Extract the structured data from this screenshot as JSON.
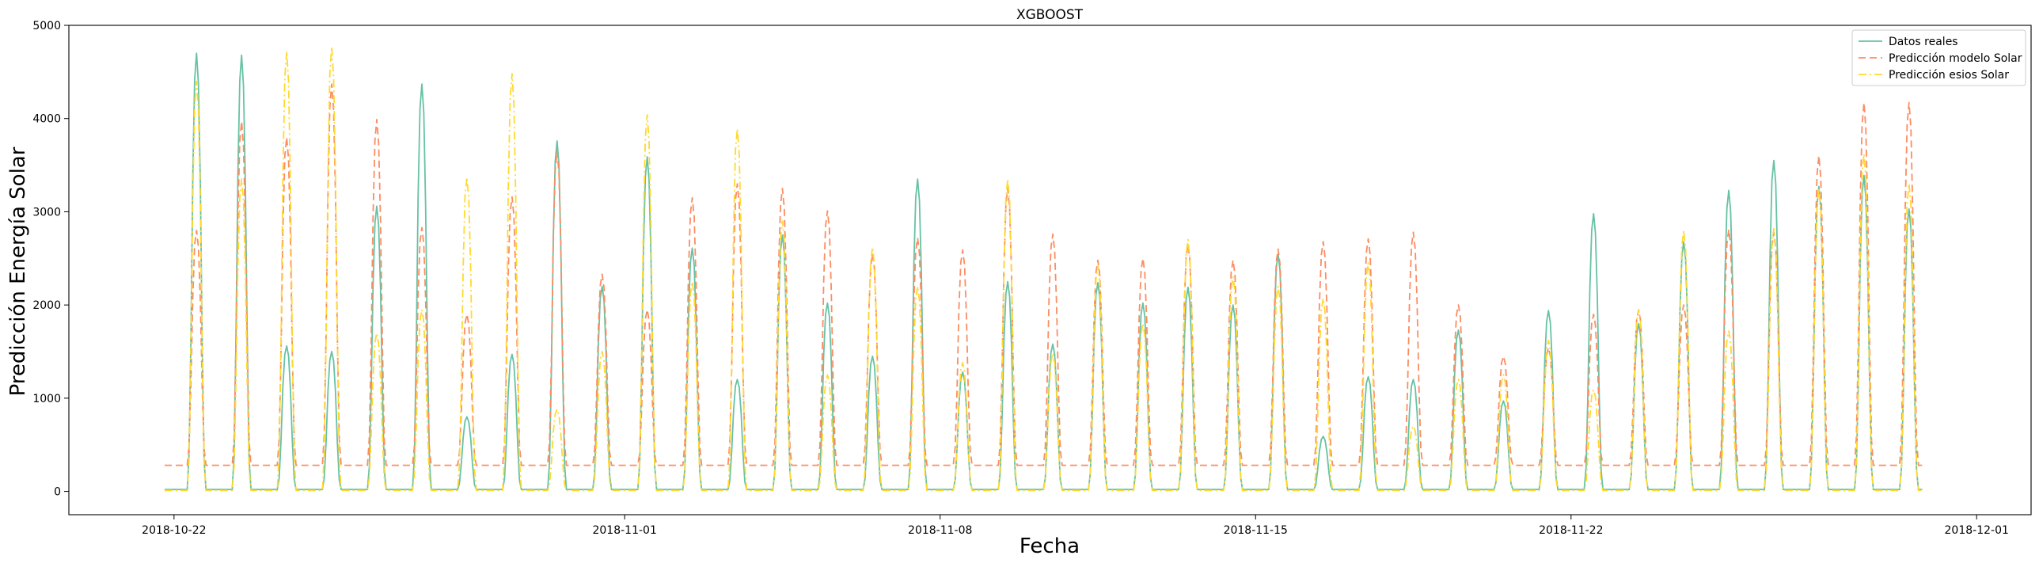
{
  "chart_data": {
    "type": "line",
    "title": "XGBOOST",
    "xlabel": "Fecha",
    "ylabel": "Predicción Energía Solar",
    "x_range": [
      "2018-10-19T16:00",
      "2018-12-02T05:00"
    ],
    "ylim": [
      -250,
      5000
    ],
    "y_ticks": [
      0,
      1000,
      2000,
      3000,
      4000,
      5000
    ],
    "x_ticks": [
      "2018-10-22",
      "2018-11-01",
      "2018-11-08",
      "2018-11-15",
      "2018-11-22",
      "2018-12-01"
    ],
    "grid": false,
    "legend_position": "top-right",
    "series": [
      {
        "name": "Datos reales",
        "color": "#66c2a5",
        "style": "solid",
        "night_level": 20,
        "daily_peaks": [
          [
            "2018-10-22",
            4700
          ],
          [
            "2018-10-23",
            4680
          ],
          [
            "2018-10-24",
            1560
          ],
          [
            "2018-10-25",
            1500
          ],
          [
            "2018-10-26",
            3060
          ],
          [
            "2018-10-27",
            4370
          ],
          [
            "2018-10-28",
            800
          ],
          [
            "2018-10-29",
            1470
          ],
          [
            "2018-10-30",
            3760
          ],
          [
            "2018-10-31",
            2200
          ],
          [
            "2018-11-01",
            3590
          ],
          [
            "2018-11-02",
            2610
          ],
          [
            "2018-11-03",
            1200
          ],
          [
            "2018-11-04",
            2750
          ],
          [
            "2018-11-05",
            2020
          ],
          [
            "2018-11-06",
            1450
          ],
          [
            "2018-11-07",
            3350
          ],
          [
            "2018-11-08",
            1280
          ],
          [
            "2018-11-09",
            2250
          ],
          [
            "2018-11-10",
            1580
          ],
          [
            "2018-11-11",
            2240
          ],
          [
            "2018-11-12",
            2020
          ],
          [
            "2018-11-13",
            2190
          ],
          [
            "2018-11-14",
            2000
          ],
          [
            "2018-11-15",
            2550
          ],
          [
            "2018-11-16",
            590
          ],
          [
            "2018-11-17",
            1230
          ],
          [
            "2018-11-18",
            1200
          ],
          [
            "2018-11-19",
            1730
          ],
          [
            "2018-11-20",
            970
          ],
          [
            "2018-11-21",
            1940
          ],
          [
            "2018-11-22",
            2980
          ],
          [
            "2018-11-23",
            1800
          ],
          [
            "2018-11-24",
            2680
          ],
          [
            "2018-11-25",
            3230
          ],
          [
            "2018-11-26",
            3550
          ],
          [
            "2018-11-27",
            3270
          ],
          [
            "2018-11-28",
            3390
          ],
          [
            "2018-11-29",
            3030
          ]
        ]
      },
      {
        "name": "Predicción modelo Solar",
        "color": "#fc8d62",
        "style": "dashed",
        "night_level": 280,
        "daily_peaks": [
          [
            "2018-10-22",
            2800
          ],
          [
            "2018-10-23",
            3970
          ],
          [
            "2018-10-24",
            3800
          ],
          [
            "2018-10-25",
            4370
          ],
          [
            "2018-10-26",
            3990
          ],
          [
            "2018-10-27",
            2830
          ],
          [
            "2018-10-28",
            1900
          ],
          [
            "2018-10-29",
            3160
          ],
          [
            "2018-10-30",
            3650
          ],
          [
            "2018-10-31",
            2330
          ],
          [
            "2018-11-01",
            1950
          ],
          [
            "2018-11-02",
            3150
          ],
          [
            "2018-11-03",
            3300
          ],
          [
            "2018-11-04",
            3250
          ],
          [
            "2018-11-05",
            3010
          ],
          [
            "2018-11-06",
            2550
          ],
          [
            "2018-11-07",
            2720
          ],
          [
            "2018-11-08",
            2590
          ],
          [
            "2018-11-09",
            3250
          ],
          [
            "2018-11-10",
            2760
          ],
          [
            "2018-11-11",
            2480
          ],
          [
            "2018-11-12",
            2500
          ],
          [
            "2018-11-13",
            2650
          ],
          [
            "2018-11-14",
            2480
          ],
          [
            "2018-11-15",
            2600
          ],
          [
            "2018-11-16",
            2680
          ],
          [
            "2018-11-17",
            2710
          ],
          [
            "2018-11-18",
            2780
          ],
          [
            "2018-11-19",
            2000
          ],
          [
            "2018-11-20",
            1450
          ],
          [
            "2018-11-21",
            1540
          ],
          [
            "2018-11-22",
            1900
          ],
          [
            "2018-11-23",
            1950
          ],
          [
            "2018-11-24",
            2000
          ],
          [
            "2018-11-25",
            2810
          ],
          [
            "2018-11-26",
            2780
          ],
          [
            "2018-11-27",
            3600
          ],
          [
            "2018-11-28",
            4170
          ],
          [
            "2018-11-29",
            4170
          ]
        ]
      },
      {
        "name": "Predicción esios Solar",
        "color": "#ffd92f",
        "style": "dashdot",
        "night_level": 10,
        "daily_peaks": [
          [
            "2018-10-22",
            4400
          ],
          [
            "2018-10-23",
            3350
          ],
          [
            "2018-10-24",
            4720
          ],
          [
            "2018-10-25",
            4770
          ],
          [
            "2018-10-26",
            1700
          ],
          [
            "2018-10-27",
            1950
          ],
          [
            "2018-10-28",
            3370
          ],
          [
            "2018-10-29",
            4480
          ],
          [
            "2018-10-30",
            880
          ],
          [
            "2018-10-31",
            1500
          ],
          [
            "2018-11-01",
            4040
          ],
          [
            "2018-11-02",
            2250
          ],
          [
            "2018-11-03",
            3890
          ],
          [
            "2018-11-04",
            2900
          ],
          [
            "2018-11-05",
            1250
          ],
          [
            "2018-11-06",
            2620
          ],
          [
            "2018-11-07",
            2200
          ],
          [
            "2018-11-08",
            1380
          ],
          [
            "2018-11-09",
            3350
          ],
          [
            "2018-11-10",
            1480
          ],
          [
            "2018-11-11",
            2420
          ],
          [
            "2018-11-12",
            1800
          ],
          [
            "2018-11-13",
            2700
          ],
          [
            "2018-11-14",
            2300
          ],
          [
            "2018-11-15",
            2200
          ],
          [
            "2018-11-16",
            2070
          ],
          [
            "2018-11-17",
            2450
          ],
          [
            "2018-11-18",
            700
          ],
          [
            "2018-11-19",
            1200
          ],
          [
            "2018-11-20",
            1250
          ],
          [
            "2018-11-21",
            1620
          ],
          [
            "2018-11-22",
            1090
          ],
          [
            "2018-11-23",
            1950
          ],
          [
            "2018-11-24",
            2800
          ],
          [
            "2018-11-25",
            1720
          ],
          [
            "2018-11-26",
            2820
          ],
          [
            "2018-11-27",
            3250
          ],
          [
            "2018-11-28",
            3620
          ],
          [
            "2018-11-29",
            3300
          ]
        ]
      }
    ]
  }
}
